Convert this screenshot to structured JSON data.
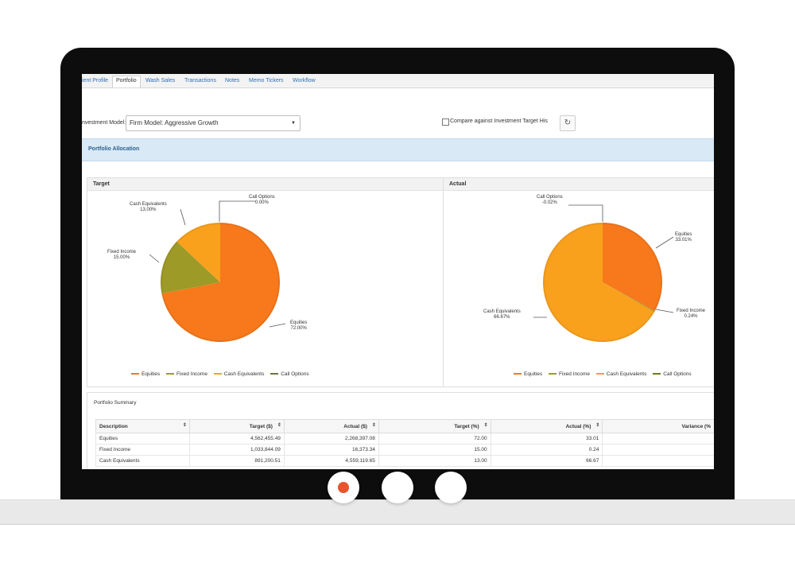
{
  "tabs": [
    {
      "label": "ient Profile"
    },
    {
      "label": "Portfolio"
    },
    {
      "label": "Wash Sales"
    },
    {
      "label": "Transactions"
    },
    {
      "label": "Notes"
    },
    {
      "label": "Memo Tickers"
    },
    {
      "label": "Workflow"
    }
  ],
  "investment_model": {
    "label": "nvestment Model:",
    "value": "Firm Model: Aggressive Growth",
    "compare_label": "Compare against Investment Target His"
  },
  "section": {
    "title": "Portfolio Allocation"
  },
  "colors": {
    "equities": "#f7791b",
    "fixed_income": "#9e9a27",
    "cash_equivalents": "#f9a11d",
    "call_options": "#6f7a1c"
  },
  "target": {
    "title": "Target",
    "labels": {
      "call_options": {
        "name": "Call Options",
        "value": "0.00%"
      },
      "cash_equivalents": {
        "name": "Cash Equivalents",
        "value": "13.00%"
      },
      "fixed_income": {
        "name": "Fixed Income",
        "value": "15.00%"
      },
      "equities": {
        "name": "Equities",
        "value": "72.00%"
      }
    }
  },
  "actual": {
    "title": "Actual",
    "labels": {
      "call_options": {
        "name": "Call Options",
        "value": "-0.02%"
      },
      "equities": {
        "name": "Equities",
        "value": "33.01%"
      },
      "fixed_income": {
        "name": "Fixed Income",
        "value": "0.24%"
      },
      "cash_equivalents": {
        "name": "Cash Equivalents",
        "value": "66.67%"
      }
    }
  },
  "legend": [
    "Equities",
    "Fixed Income",
    "Cash Equivalents",
    "Call Options"
  ],
  "chart_data": [
    {
      "type": "pie",
      "title": "Target",
      "categories": [
        "Equities",
        "Fixed Income",
        "Cash Equivalents",
        "Call Options"
      ],
      "values": [
        72.0,
        15.0,
        13.0,
        0.0
      ]
    },
    {
      "type": "pie",
      "title": "Actual",
      "categories": [
        "Equities",
        "Fixed Income",
        "Cash Equivalents",
        "Call Options"
      ],
      "values": [
        33.01,
        0.24,
        66.67,
        -0.02
      ]
    }
  ],
  "summary": {
    "title": "Portfolio Summary",
    "headers": [
      "Description",
      "Target ($)",
      "Actual ($)",
      "Target (%)",
      "Actual (%)",
      "Variance (%"
    ],
    "rows": [
      [
        "Equities",
        "4,562,455.49",
        "2,268,397.08",
        "72.00",
        "33.01",
        ""
      ],
      [
        "Fixed Income",
        "1,033,844.09",
        "16,373.34",
        "15.00",
        "0.24",
        ""
      ],
      [
        "Cash Equivalents",
        "891,200.51",
        "4,559,119.65",
        "13.00",
        "66.67",
        ""
      ]
    ]
  },
  "carousel": {
    "active_index": 0,
    "count": 3
  }
}
